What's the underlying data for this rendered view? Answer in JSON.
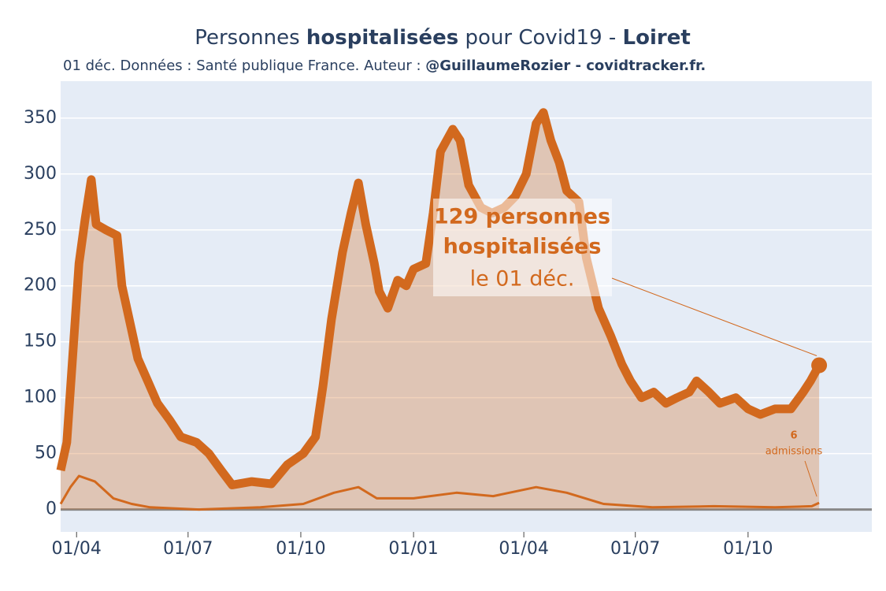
{
  "chart_data": {
    "type": "line",
    "title": [
      {
        "text": "Personnes ",
        "bold": false
      },
      {
        "text": "hospitalisées",
        "bold": true
      },
      {
        "text": " pour Covid19 - ",
        "bold": false
      },
      {
        "text": "Loiret",
        "bold": true
      }
    ],
    "subtitle": [
      {
        "text": "01 déc. Données : Santé publique France. Auteur : ",
        "bold": false
      },
      {
        "text": "@GuillaumeRozier - covidtracker.fr.",
        "bold": true
      }
    ],
    "xlim": [
      -13,
      649
    ],
    "xticks": [
      {
        "value": 0,
        "label": "01/04"
      },
      {
        "value": 91,
        "label": "01/07"
      },
      {
        "value": 183,
        "label": "01/10"
      },
      {
        "value": 275,
        "label": "01/01"
      },
      {
        "value": 365,
        "label": "01/04"
      },
      {
        "value": 456,
        "label": "01/07"
      },
      {
        "value": 548,
        "label": "01/10"
      }
    ],
    "ylim": [
      -20,
      383
    ],
    "yticks": [
      0,
      50,
      100,
      150,
      200,
      250,
      300,
      350
    ],
    "grid": true,
    "series": [
      {
        "color": "#d2691e",
        "fill": true,
        "x": [
          -13,
          -8,
          -3,
          2,
          7,
          12,
          16,
          24,
          33,
          37,
          44,
          50,
          58,
          66,
          76,
          85,
          98,
          108,
          118,
          127,
          143,
          159,
          172,
          185,
          195,
          201,
          208,
          217,
          224,
          230,
          236,
          243,
          247,
          254,
          262,
          269,
          275,
          285,
          291,
          297,
          307,
          313,
          320,
          330,
          339,
          349,
          358,
          367,
          375,
          381,
          387,
          394,
          400,
          410,
          416,
          426,
          436,
          445,
          452,
          461,
          471,
          481,
          490,
          500,
          506,
          516,
          525,
          538,
          548,
          558,
          570,
          583,
          593,
          599,
          606
        ],
        "values": [
          35,
          60,
          140,
          220,
          260,
          295,
          255,
          250,
          245,
          200,
          165,
          135,
          115,
          95,
          80,
          65,
          60,
          50,
          35,
          22,
          25,
          23,
          40,
          50,
          65,
          110,
          170,
          230,
          265,
          292,
          255,
          220,
          195,
          180,
          205,
          200,
          215,
          220,
          265,
          320,
          340,
          330,
          290,
          270,
          265,
          270,
          280,
          300,
          345,
          355,
          330,
          310,
          285,
          275,
          225,
          180,
          155,
          130,
          115,
          100,
          105,
          95,
          100,
          105,
          115,
          105,
          95,
          100,
          90,
          85,
          90,
          90,
          105,
          115,
          129
        ]
      },
      {
        "color": "#d2691e",
        "fill": false,
        "x": [
          -13,
          -5,
          2,
          15,
          30,
          45,
          60,
          100,
          150,
          185,
          210,
          230,
          245,
          275,
          310,
          340,
          375,
          400,
          430,
          470,
          520,
          570,
          600,
          606
        ],
        "values": [
          5,
          20,
          30,
          25,
          10,
          5,
          2,
          0,
          2,
          5,
          15,
          20,
          10,
          10,
          15,
          12,
          20,
          15,
          5,
          2,
          3,
          2,
          3,
          6
        ]
      }
    ],
    "annotations": {
      "hospitalized": [
        "129 personnes",
        "hospitalisées",
        "le 01 déc."
      ],
      "admissions": [
        "6",
        "admissions"
      ]
    }
  }
}
